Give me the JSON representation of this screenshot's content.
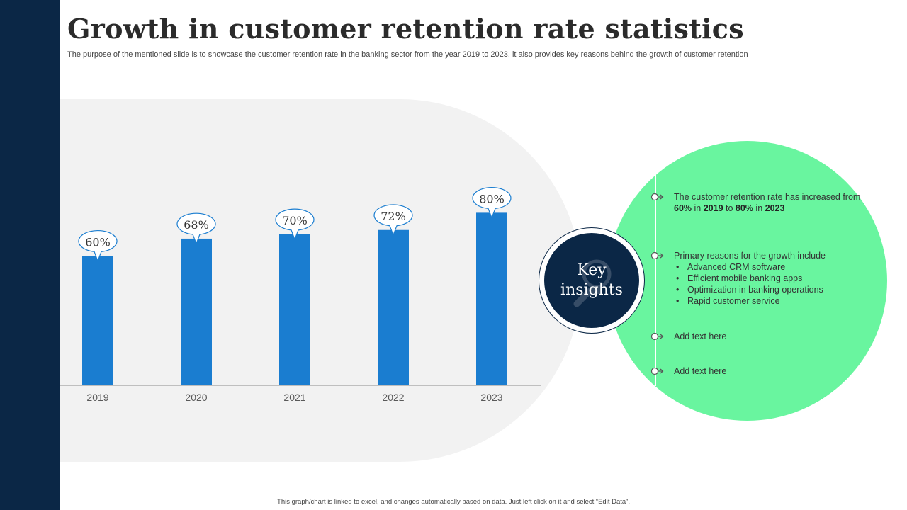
{
  "title": "Growth in customer retention rate statistics",
  "subtitle": "The purpose of the mentioned slide is to showcase the customer retention rate in the banking sector from the year 2019 to 2023. it also provides key reasons behind the growth of customer retention",
  "chart_data": {
    "type": "bar",
    "title": "",
    "categories": [
      "2019",
      "2020",
      "2021",
      "2022",
      "2023"
    ],
    "values": [
      60,
      68,
      70,
      72,
      80
    ],
    "data_labels": [
      "60%",
      "68%",
      "70%",
      "72%",
      "80%"
    ],
    "xlabel": "",
    "ylabel": "",
    "ylim": [
      0,
      133
    ],
    "bar_color": "#1a7dd0"
  },
  "key_insights": {
    "label_line1": "Key",
    "label_line2": "insights",
    "items": [
      {
        "p1": "The customer retention rate has increased from ",
        "b1": "60%",
        "p2": " in ",
        "b2": "2019",
        "p3": " to ",
        "b3": "80%",
        "p4": " in ",
        "b4": "2023"
      },
      {
        "intro": "Primary reasons for the growth include",
        "bullets": [
          "Advanced CRM software",
          "Efficient mobile banking apps",
          "Optimization in banking operations",
          "Rapid customer service"
        ]
      },
      {
        "text": "Add text here"
      },
      {
        "text": "Add text here"
      }
    ]
  },
  "footer": "This graph/chart is linked to excel, and changes automatically based on data. Just left click on it and select “Edit Data”.",
  "colors": {
    "sidebar": "#0b2746",
    "bar": "#1a7dd0",
    "green": "#69f59f",
    "key_circle": "#0b2746"
  }
}
